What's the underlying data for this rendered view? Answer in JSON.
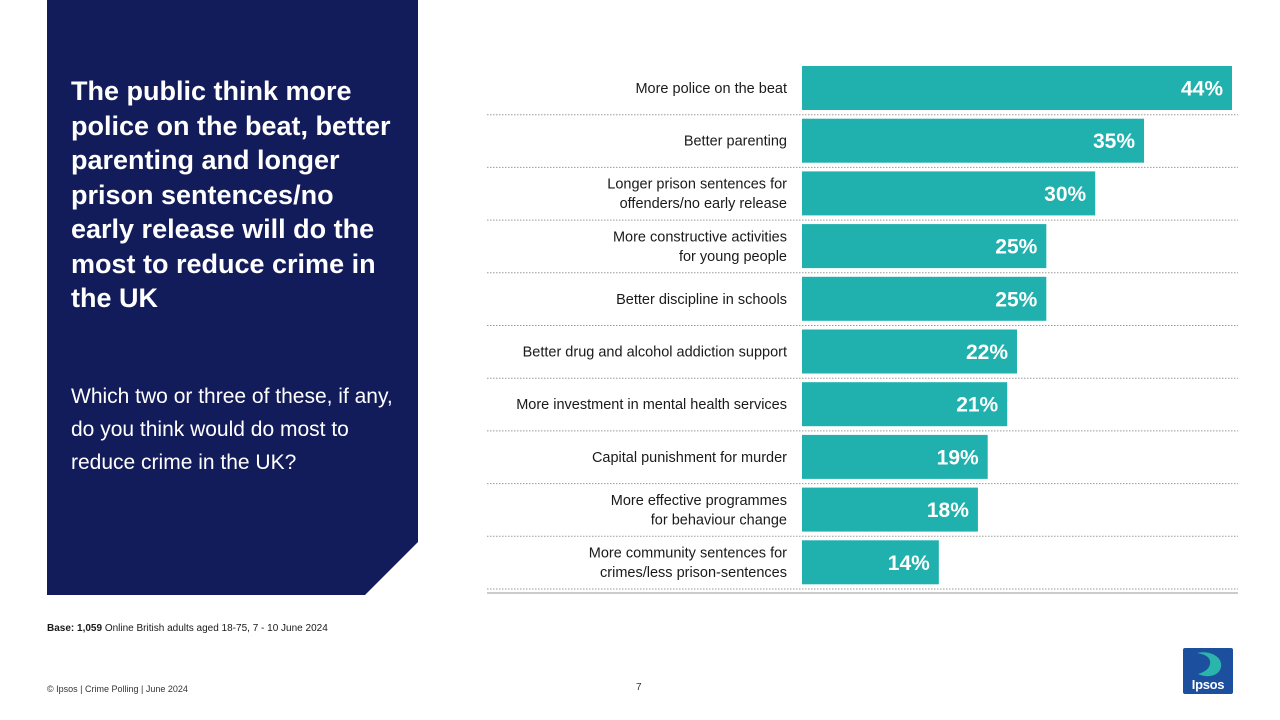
{
  "panel": {
    "title": "The public think more police on the beat, better parenting and longer prison sentences/no early release will do the most to reduce crime in the UK",
    "question": "Which two or three of these, if any, do you think would do most to reduce crime in the UK?"
  },
  "chart_data": {
    "type": "bar",
    "orientation": "horizontal",
    "title": "",
    "xlabel": "",
    "ylabel": "",
    "xlim": [
      0,
      44
    ],
    "value_suffix": "%",
    "color": "#20b0ad",
    "categories": [
      [
        "More police on the beat"
      ],
      [
        "Better parenting"
      ],
      [
        "Longer prison sentences for",
        "offenders/no early release"
      ],
      [
        "More constructive activities",
        "for young people"
      ],
      [
        "Better discipline in schools"
      ],
      [
        "Better drug and alcohol addiction support"
      ],
      [
        "More investment in mental health services"
      ],
      [
        "Capital punishment for murder"
      ],
      [
        "More effective programmes",
        "for behaviour change"
      ],
      [
        "More community sentences for",
        "crimes/less prison-sentences"
      ]
    ],
    "values": [
      44,
      35,
      30,
      25,
      25,
      22,
      21,
      19,
      18,
      14
    ]
  },
  "base_note": {
    "label": "Base: 1,059",
    "text": " Online British adults aged 18-75, 7 - 10 June 2024"
  },
  "footer": {
    "left": "© Ipsos | Crime Polling | June 2024",
    "page_number": "7"
  },
  "logo": {
    "text": "Ipsos"
  }
}
